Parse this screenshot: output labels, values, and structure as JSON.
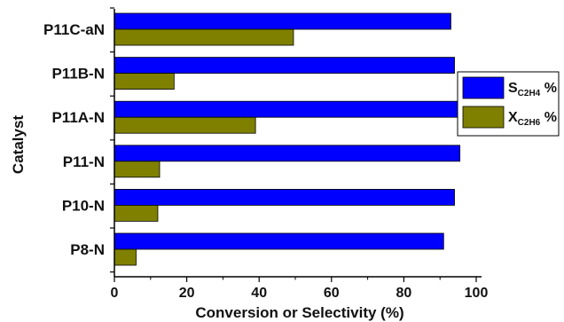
{
  "chart_data": {
    "type": "bar",
    "orientation": "horizontal",
    "categories": [
      "P8-N",
      "P10-N",
      "P11-N",
      "P11A-N",
      "P11B-N",
      "P11C-aN"
    ],
    "series": [
      {
        "name": "S_C2H4 %",
        "label_main": "S",
        "label_sub": "C2H4",
        "label_tail": " %",
        "color": "#0000ff",
        "values": [
          91,
          94,
          95.5,
          95,
          94,
          93
        ]
      },
      {
        "name": "X_C2H6 %",
        "label_main": "X",
        "label_sub": "C2H6",
        "label_tail": " %",
        "color": "#808000",
        "values": [
          6,
          12,
          12.5,
          39,
          16.5,
          49.5
        ]
      }
    ],
    "xlabel": "Conversion or Selectivity (%)",
    "ylabel": "Catalyst",
    "xlim": [
      0,
      100
    ],
    "xticks": [
      "0",
      "20",
      "40",
      "60",
      "80",
      "100"
    ],
    "legend_position": "right",
    "grid": false
  }
}
